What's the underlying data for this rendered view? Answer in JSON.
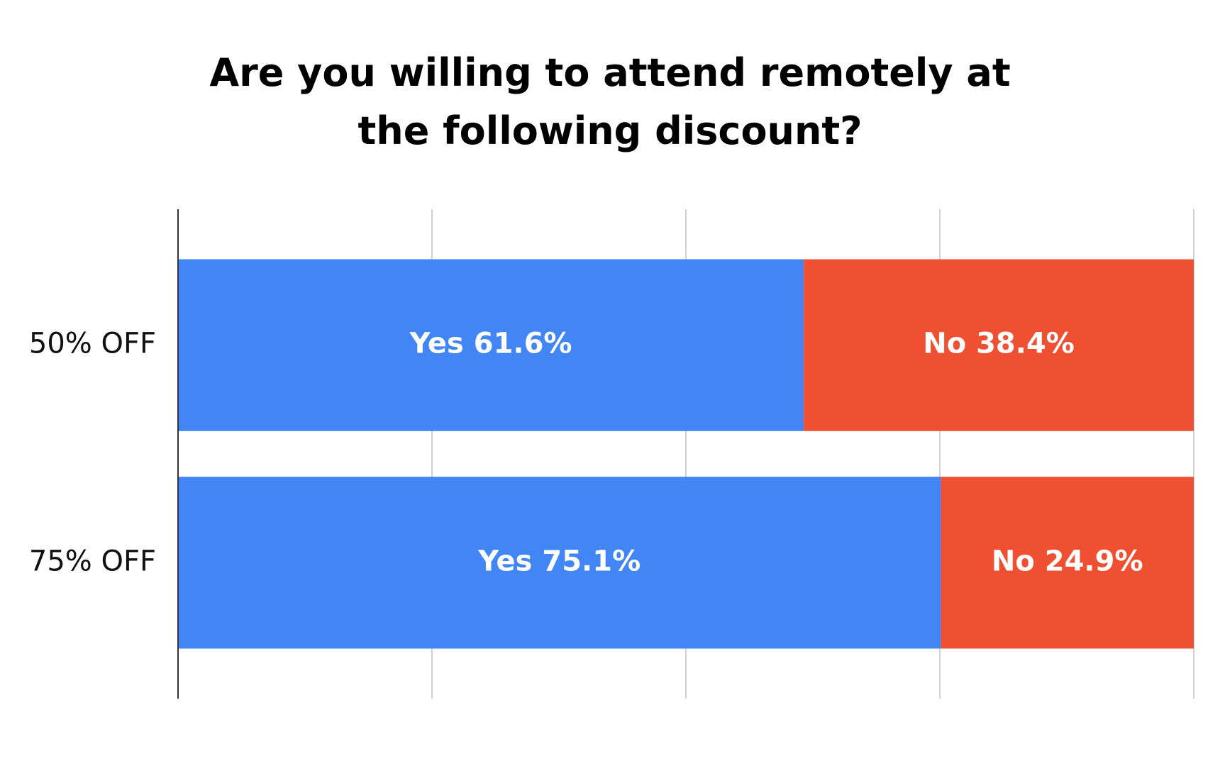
{
  "chart_data": {
    "type": "stacked-bar-horizontal",
    "title": "Are you willing to attend remotely at the following discount?",
    "categories": [
      "50% OFF",
      "75% OFF"
    ],
    "series": [
      {
        "name": "Yes",
        "color": "#4285f4",
        "values": [
          61.6,
          75.1
        ],
        "value_labels": [
          "Yes 61.6%",
          "Yes 75.1%"
        ]
      },
      {
        "name": "No",
        "color": "#f05032",
        "values": [
          38.4,
          24.9
        ],
        "value_labels": [
          "No 38.4%",
          "No 24.9%"
        ]
      }
    ],
    "xlim": [
      0,
      100
    ],
    "xticks": [
      0,
      25,
      50,
      75,
      100
    ],
    "grid": true
  }
}
